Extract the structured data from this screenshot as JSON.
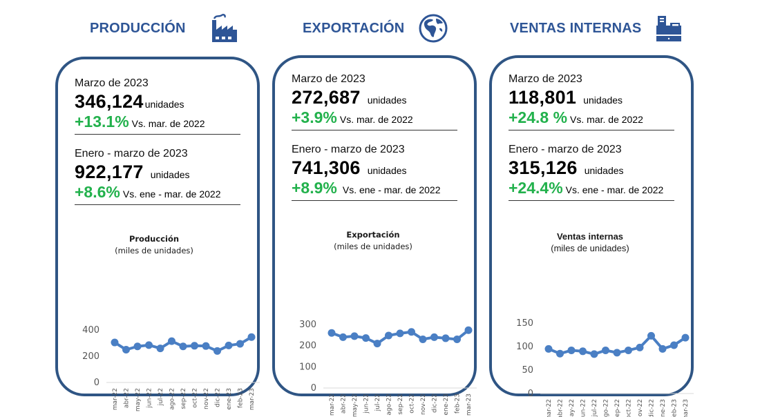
{
  "colors": {
    "title": "#2e5596",
    "card_border": "#2f5584",
    "positive": "#22b14c",
    "series": "#4a7fc4"
  },
  "panels": [
    {
      "title": "PRODUCCIÓN",
      "icon": "factory-icon",
      "monthly": {
        "period": "Marzo de 2023",
        "value": "346,124",
        "unit": "unidades",
        "change": "+13.1%",
        "compare": "Vs. mar. de 2022"
      },
      "ytd": {
        "period": "Enero - marzo de 2023",
        "value": "922,177",
        "unit": "unidades",
        "change": "+8.6%",
        "compare": "Vs. ene - mar. de 2022"
      },
      "chart_title": "Producción",
      "chart_subtitle": "(miles de unidades)"
    },
    {
      "title": "EXPORTACIÓN",
      "icon": "globe-icon",
      "monthly": {
        "period": "Marzo de 2023",
        "value": "272,687",
        "unit": "unidades",
        "change": "+3.9%",
        "compare": "Vs. mar. de 2022"
      },
      "ytd": {
        "period": "Enero - marzo de 2023",
        "value": "741,306",
        "unit": "unidades",
        "change": "+8.9%",
        "compare": "Vs. ene - mar. de 2022"
      },
      "chart_title": "Exportación",
      "chart_subtitle": "(miles de unidades)"
    },
    {
      "title": "VENTAS INTERNAS",
      "icon": "cash-register-icon",
      "monthly": {
        "period": "Marzo de 2023",
        "value": "118,801",
        "unit": "unidades",
        "change": "+24.8 %",
        "compare": "Vs. mar. de 2022"
      },
      "ytd": {
        "period": "Enero - marzo de 2023",
        "value": "315,126",
        "unit": "unidades",
        "change": "+24.4%",
        "compare": "Vs. ene - mar. de 2022"
      },
      "chart_title": "Ventas internas",
      "chart_subtitle": "(miles de unidades)"
    }
  ],
  "chart_data": [
    {
      "type": "line",
      "title": "Producción",
      "subtitle": "(miles de unidades)",
      "xlabel": "",
      "ylabel": "",
      "categories": [
        "mar-22",
        "abr-22",
        "may-22",
        "jun-22",
        "jul-22",
        "ago-22",
        "sep-22",
        "oct-22",
        "nov-22",
        "dic-22",
        "ene-23",
        "feb-23",
        "mar-23"
      ],
      "values": [
        305,
        250,
        275,
        285,
        260,
        315,
        275,
        280,
        278,
        240,
        282,
        295,
        346
      ],
      "yticks": [
        0,
        200,
        400
      ],
      "ylim": [
        0,
        400
      ],
      "grid": false,
      "legend": "none"
    },
    {
      "type": "line",
      "title": "Exportación",
      "subtitle": "(miles de unidades)",
      "xlabel": "",
      "ylabel": "",
      "categories": [
        "mar-22",
        "abr-22",
        "may-22",
        "jun-22",
        "jul-22",
        "ago-22",
        "sep-22",
        "oct-22",
        "nov-22",
        "dic-22",
        "ene-23",
        "feb-23",
        "mar-23"
      ],
      "values": [
        260,
        240,
        245,
        236,
        210,
        248,
        258,
        265,
        230,
        240,
        235,
        230,
        273
      ],
      "yticks": [
        0,
        100,
        200,
        300
      ],
      "ylim": [
        0,
        300
      ],
      "grid": false,
      "legend": "none"
    },
    {
      "type": "line",
      "title": "Ventas internas",
      "subtitle": "(miles de unidades)",
      "xlabel": "",
      "ylabel": "",
      "categories": [
        "mar-22",
        "abr-22",
        "may-22",
        "jun-22",
        "jul-22",
        "ago-22",
        "sep-22",
        "oct-22",
        "nov-22",
        "dic-22",
        "ene-23",
        "feb-23",
        "mar-23"
      ],
      "values": [
        95,
        85,
        92,
        90,
        84,
        92,
        87,
        92,
        98,
        123,
        95,
        103,
        119
      ],
      "yticks": [
        0,
        50,
        100,
        150
      ],
      "ylim": [
        0,
        150
      ],
      "grid": false,
      "legend": "none"
    }
  ]
}
